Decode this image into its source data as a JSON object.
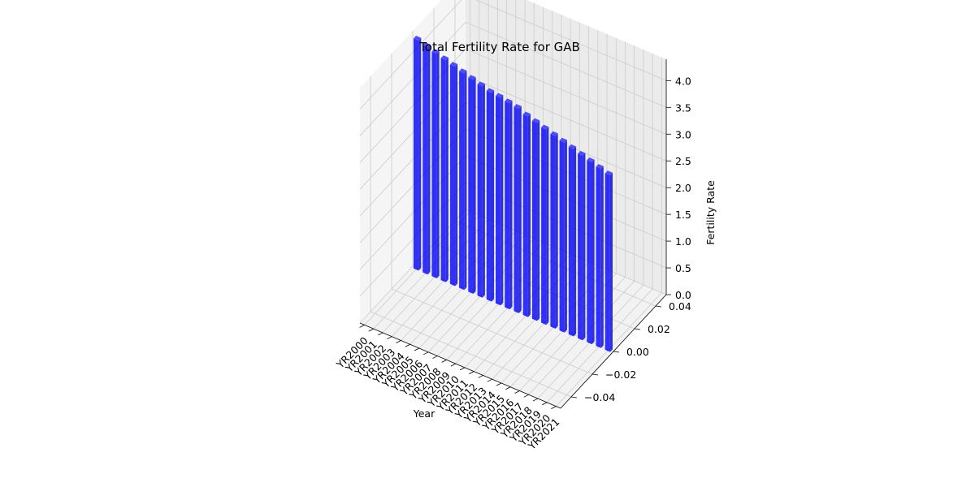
{
  "chart_data": {
    "type": "bar",
    "title": "Total Fertility Rate for GAB",
    "xlabel": "Year",
    "ylabel": "",
    "zlabel": "Fertility Rate",
    "categories": [
      "YR2000",
      "YR2001",
      "YR2002",
      "YR2003",
      "YR2004",
      "YR2005",
      "YR2006",
      "YR2007",
      "YR2008",
      "YR2009",
      "YR2010",
      "YR2011",
      "YR2012",
      "YR2013",
      "YR2014",
      "YR2015",
      "YR2016",
      "YR2017",
      "YR2018",
      "YR2019",
      "YR2020",
      "YR2021"
    ],
    "values": [
      4.3,
      4.25,
      4.2,
      4.15,
      4.1,
      4.05,
      4.0,
      3.95,
      3.9,
      3.88,
      3.85,
      3.82,
      3.75,
      3.7,
      3.65,
      3.6,
      3.55,
      3.5,
      3.45,
      3.4,
      3.35,
      3.3
    ],
    "y_ticks": [
      "−0.04",
      "−0.02",
      "0.00",
      "0.02",
      "0.04"
    ],
    "z_ticks": [
      "0.0",
      "0.5",
      "1.0",
      "1.5",
      "2.0",
      "2.5",
      "3.0",
      "3.5",
      "4.0"
    ],
    "zlim": [
      0,
      4.4
    ],
    "bar_color": "#0000ff",
    "grid": true
  }
}
